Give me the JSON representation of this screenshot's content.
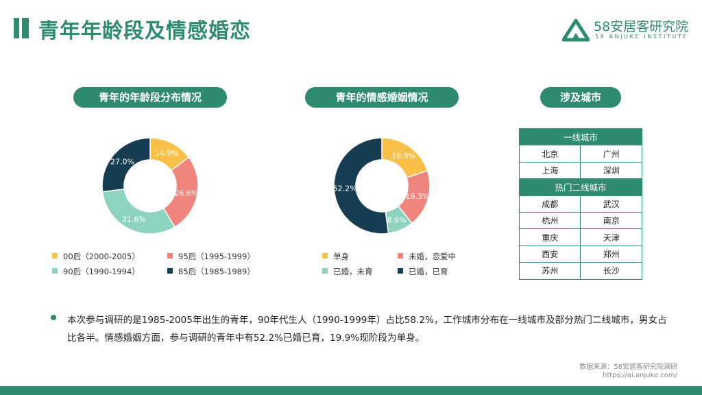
{
  "page": {
    "title": "青年年龄段及情感婚恋",
    "summary": "本次参与调研的是1985-2005年出生的青年，90年代生人（1990-1999年）占比58.2%，工作城市分布在一线城市及部分热门二线城市，男女占比各半。情感婚姻方面，参与调研的青年中有52.2%已婚已育，19.9%现阶段为单身。",
    "source": "数据来源：58安居客研究院调研",
    "url": "https://ai.anjuke.com/"
  },
  "logo": {
    "name": "58安居客研究院",
    "sub": "58 ANJUKE INSTITUTE"
  },
  "colors": {
    "brand": "#2e8b6f",
    "yellow": "#f9c04a",
    "salmon": "#ef857d",
    "mint": "#8dd3bf",
    "navy": "#173d52"
  },
  "cities": {
    "title": "涉及城市",
    "tier1_label": "一线城市",
    "tier1": [
      [
        "北京",
        "广州"
      ],
      [
        "上海",
        "深圳"
      ]
    ],
    "tier2_label": "热门二线城市",
    "tier2": [
      [
        "成都",
        "武汉"
      ],
      [
        "杭州",
        "南京"
      ],
      [
        "重庆",
        "天津"
      ],
      [
        "西安",
        "郑州"
      ],
      [
        "苏州",
        "长沙"
      ]
    ]
  },
  "chart_data": [
    {
      "type": "pie",
      "title": "青年的年龄段分布情况",
      "categories": [
        "00后（2000-2005）",
        "95后（1995-1999）",
        "90后（1990-1994）",
        "85后（1985-1989）"
      ],
      "values": [
        14.9,
        26.6,
        31.6,
        27.0
      ],
      "labels": [
        "14.9%",
        "26.6%",
        "31.6%",
        "27.0%"
      ],
      "colors": [
        "#f9c04a",
        "#ef857d",
        "#8dd3bf",
        "#173d52"
      ],
      "donut": true,
      "legend": "bottom"
    },
    {
      "type": "pie",
      "title": "青年的情感婚姻情况",
      "categories": [
        "单身",
        "未婚，恋爱中",
        "已婚，未育",
        "已婚，已育"
      ],
      "values": [
        19.9,
        19.3,
        8.6,
        52.2
      ],
      "labels": [
        "19.9%",
        "19.3%",
        "8.6%",
        "52.2%"
      ],
      "colors": [
        "#f9c04a",
        "#ef857d",
        "#8dd3bf",
        "#173d52"
      ],
      "donut": true,
      "legend": "bottom"
    }
  ]
}
